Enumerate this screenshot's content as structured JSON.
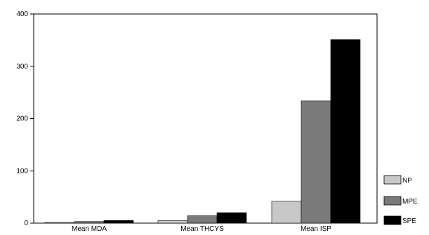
{
  "chart_data": {
    "type": "bar",
    "categories": [
      "Mean MDA",
      "Mean THCYS",
      "Mean ISP"
    ],
    "series": [
      {
        "name": "NP",
        "values": [
          1,
          5,
          42
        ],
        "color": "#c8c8c8"
      },
      {
        "name": "MPE",
        "values": [
          3,
          14,
          234
        ],
        "color": "#7a7a7a"
      },
      {
        "name": "SPE",
        "values": [
          5,
          20,
          351
        ],
        "color": "#000000"
      }
    ],
    "yticks": [
      0,
      100,
      200,
      300,
      400
    ],
    "ylim": [
      0,
      400
    ],
    "grid": false,
    "legend_position": "right"
  }
}
